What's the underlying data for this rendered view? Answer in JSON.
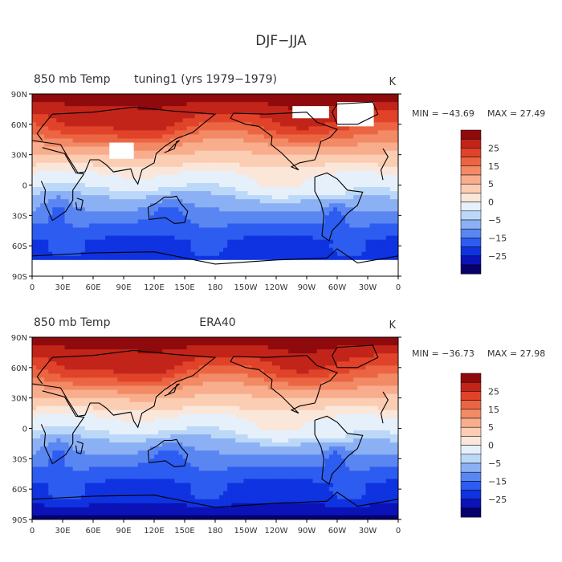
{
  "figure_title": "DJF−JJA",
  "colors": {
    "scale": [
      "#08006b",
      "#0b12b7",
      "#0f33e0",
      "#2d5cf0",
      "#5a86f2",
      "#8bb0f4",
      "#bcd8f8",
      "#e6f0fb",
      "#fbe6da",
      "#fbcdb3",
      "#f8ad8d",
      "#f28a66",
      "#ec6542",
      "#e0432a",
      "#c2241a",
      "#8e0a0c"
    ],
    "land_mask": "#ffffff",
    "coast": "#000000"
  },
  "colorbar_labels": [
    "25",
    "15",
    "5",
    "0",
    "−5",
    "−15",
    "−25"
  ],
  "panels": [
    {
      "id": "tuning1",
      "left_title": "850 mb Temp",
      "center_title": "tuning1 (yrs 1979−1979)",
      "units": "K",
      "min_label": "MIN = −43.69",
      "max_label": "MAX =  27.49",
      "missing_regions": [
        "Tibet",
        "Greenland",
        "Arctic Canada",
        "Antarctica"
      ]
    },
    {
      "id": "era40",
      "left_title": "850 mb Temp",
      "center_title": "ERA40",
      "units": "K",
      "min_label": "MIN = −36.73",
      "max_label": "MAX =  27.98",
      "missing_regions": []
    }
  ],
  "chart_data": {
    "type": "heatmap",
    "title": "DJF−JJA",
    "variable": "850 mb Temp",
    "units": "K",
    "x_tick_labels": [
      "0",
      "30E",
      "60E",
      "90E",
      "120E",
      "150E",
      "180",
      "150W",
      "120W",
      "90W",
      "60W",
      "30W",
      "0"
    ],
    "y_tick_labels": [
      "90N",
      "60N",
      "30N",
      "0",
      "30S",
      "60S",
      "90S"
    ],
    "x_range": [
      0,
      360
    ],
    "y_range": [
      -90,
      90
    ],
    "contour_levels": [
      -35,
      -30,
      -25,
      -20,
      -15,
      -10,
      -5,
      -2,
      2,
      5,
      10,
      15,
      20,
      25,
      30
    ],
    "colorbar_ticks": [
      25,
      15,
      5,
      0,
      -5,
      -15,
      -25
    ],
    "series": [
      {
        "name": "tuning1",
        "min": -43.69,
        "max": 27.49
      },
      {
        "name": "ERA40",
        "min": -36.73,
        "max": 27.98
      }
    ]
  }
}
